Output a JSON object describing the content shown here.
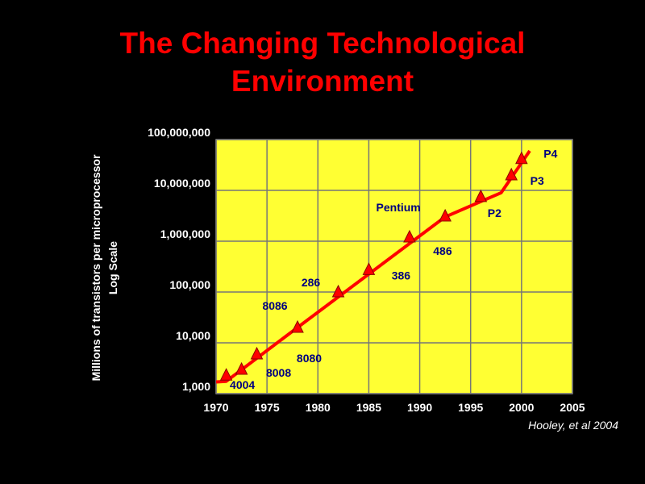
{
  "slide": {
    "title_line1": "The Changing Technological",
    "title_line2": "Environment",
    "citation": "Hooley, et al 2004"
  },
  "colors": {
    "background": "#000000",
    "title": "#ff0000",
    "plot_area": "#ffff33",
    "grid": "#777777",
    "series": "#ff0000",
    "processor_labels": "#000080",
    "axis_text": "#ffffff"
  },
  "chart_data": {
    "type": "line",
    "title": "",
    "ylabel_line1": "Millions of transistors per microprocessor",
    "ylabel_line2": "Log Scale",
    "xlabel": "",
    "x_ticks": [
      "1970",
      "1975",
      "1980",
      "1985",
      "1990",
      "1995",
      "2000",
      "2005"
    ],
    "y_ticks": [
      "1,000",
      "10,000",
      "100,000",
      "1,000,000",
      "10,000,000",
      "100,000,000"
    ],
    "xlim": [
      1970,
      2005
    ],
    "ylim": [
      1000,
      100000000
    ],
    "y_scale": "log",
    "grid": true,
    "series": [
      {
        "name": "",
        "trend_line": [
          {
            "x": 1970,
            "y": 1700
          },
          {
            "x": 1971,
            "y": 1750
          },
          {
            "x": 1978,
            "y": 20000
          },
          {
            "x": 1992.5,
            "y": 3000000
          },
          {
            "x": 1998,
            "y": 9000000
          },
          {
            "x": 2000.8,
            "y": 60000000
          }
        ],
        "points": [
          {
            "label": "4004",
            "x": 1971,
            "y": 2300
          },
          {
            "label": "8008",
            "x": 1972.5,
            "y": 3000
          },
          {
            "label": "8080",
            "x": 1974,
            "y": 6000
          },
          {
            "label": "8086",
            "x": 1978,
            "y": 20000
          },
          {
            "label": "286",
            "x": 1982,
            "y": 100000
          },
          {
            "label": "386",
            "x": 1985,
            "y": 275000
          },
          {
            "label": "486",
            "x": 1989,
            "y": 1200000
          },
          {
            "label": "Pentium",
            "x": 1992.5,
            "y": 3100000
          },
          {
            "label": "P2",
            "x": 1996,
            "y": 7500000
          },
          {
            "label": "P3",
            "x": 1999,
            "y": 20000000
          },
          {
            "label": "P4",
            "x": 2000,
            "y": 42000000
          }
        ]
      }
    ]
  }
}
